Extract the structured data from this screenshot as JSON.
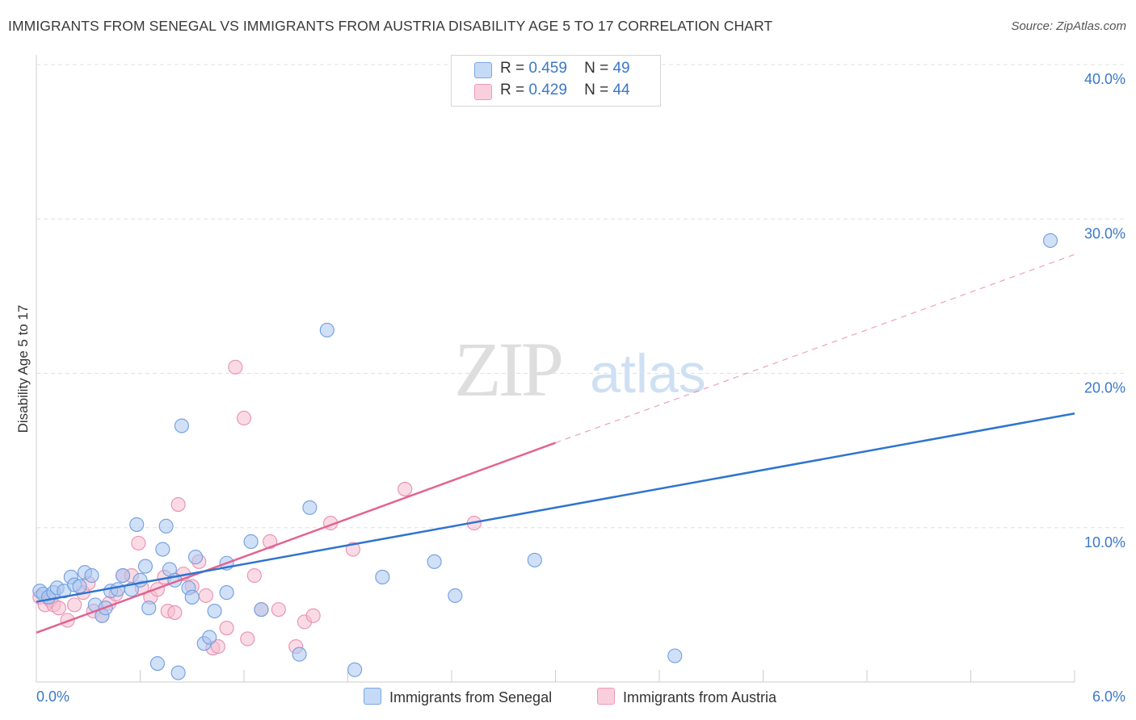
{
  "title": "IMMIGRANTS FROM SENEGAL VS IMMIGRANTS FROM AUSTRIA DISABILITY AGE 5 TO 17 CORRELATION CHART",
  "source": "Source: ZipAtlas.com",
  "watermark": {
    "zip": "ZIP",
    "atlas": "atlas"
  },
  "legend": {
    "senegal": {
      "r_label": "R =",
      "r_value": "0.459",
      "n_label": "N =",
      "n_value": "49"
    },
    "austria": {
      "r_label": "R =",
      "r_value": "0.429",
      "n_label": "N =",
      "n_value": "44"
    }
  },
  "colors": {
    "senegal_fill": "#a9c7f0",
    "senegal_stroke": "#6f9ee0",
    "senegal_line": "#2f74cf",
    "austria_fill": "#f6bdd0",
    "austria_stroke": "#e98fb0",
    "austria_line": "#e2638f",
    "grid": "#e0e0e0",
    "tick_label": "#3b78c9"
  },
  "chart_data": {
    "type": "scatter",
    "title": "IMMIGRANTS FROM SENEGAL VS IMMIGRANTS FROM AUSTRIA DISABILITY AGE 5 TO 17 CORRELATION CHART",
    "xlabel": "",
    "ylabel": "Disability Age 5 to 17",
    "xlim": [
      0,
      6.0
    ],
    "ylim": [
      0,
      40.0
    ],
    "x_tick_labels": [
      "0.0%",
      "6.0%"
    ],
    "y_ticks": [
      10,
      20,
      30,
      40
    ],
    "y_tick_labels": [
      "10.0%",
      "20.0%",
      "30.0%",
      "40.0%"
    ],
    "grid": true,
    "series": [
      {
        "name": "Immigrants from Senegal",
        "r": 0.459,
        "n": 49,
        "trend": {
          "x": [
            0,
            6.0
          ],
          "y": [
            5.2,
            17.4
          ],
          "dashed_extension": false
        },
        "points": [
          [
            0.02,
            5.9
          ],
          [
            0.04,
            5.7
          ],
          [
            0.07,
            5.5
          ],
          [
            0.1,
            5.8
          ],
          [
            0.12,
            6.1
          ],
          [
            0.16,
            5.9
          ],
          [
            0.2,
            6.8
          ],
          [
            0.22,
            6.3
          ],
          [
            0.25,
            6.2
          ],
          [
            0.28,
            7.1
          ],
          [
            0.32,
            6.9
          ],
          [
            0.34,
            5.0
          ],
          [
            0.38,
            4.3
          ],
          [
            0.4,
            4.8
          ],
          [
            0.43,
            5.9
          ],
          [
            0.47,
            6.0
          ],
          [
            0.5,
            6.9
          ],
          [
            0.55,
            6.0
          ],
          [
            0.58,
            10.2
          ],
          [
            0.6,
            6.6
          ],
          [
            0.63,
            7.5
          ],
          [
            0.65,
            4.8
          ],
          [
            0.7,
            1.2
          ],
          [
            0.73,
            8.6
          ],
          [
            0.75,
            10.1
          ],
          [
            0.77,
            7.3
          ],
          [
            0.8,
            6.6
          ],
          [
            0.82,
            0.6
          ],
          [
            0.84,
            16.6
          ],
          [
            0.88,
            6.1
          ],
          [
            0.9,
            5.5
          ],
          [
            0.92,
            8.1
          ],
          [
            0.97,
            2.5
          ],
          [
            1.0,
            2.9
          ],
          [
            1.03,
            4.6
          ],
          [
            1.1,
            7.7
          ],
          [
            1.1,
            5.8
          ],
          [
            1.24,
            9.1
          ],
          [
            1.3,
            4.7
          ],
          [
            1.52,
            1.8
          ],
          [
            1.58,
            11.3
          ],
          [
            1.68,
            22.8
          ],
          [
            1.84,
            0.8
          ],
          [
            2.0,
            6.8
          ],
          [
            2.3,
            7.8
          ],
          [
            2.42,
            5.6
          ],
          [
            2.88,
            7.9
          ],
          [
            3.69,
            1.7
          ],
          [
            5.86,
            28.6
          ]
        ]
      },
      {
        "name": "Immigrants from Austria",
        "r": 0.429,
        "n": 44,
        "trend": {
          "x": [
            0,
            3.0
          ],
          "y": [
            3.2,
            15.5
          ],
          "extension_x": [
            3.0,
            6.0
          ],
          "extension_y": [
            15.5,
            27.7
          ],
          "dashed_extension": true
        },
        "points": [
          [
            0.02,
            5.5
          ],
          [
            0.05,
            5.0
          ],
          [
            0.08,
            5.3
          ],
          [
            0.1,
            5.0
          ],
          [
            0.13,
            4.8
          ],
          [
            0.18,
            4.0
          ],
          [
            0.22,
            5.0
          ],
          [
            0.27,
            5.8
          ],
          [
            0.3,
            6.4
          ],
          [
            0.33,
            4.6
          ],
          [
            0.38,
            4.3
          ],
          [
            0.42,
            5.1
          ],
          [
            0.46,
            5.7
          ],
          [
            0.5,
            6.9
          ],
          [
            0.55,
            6.9
          ],
          [
            0.59,
            9.0
          ],
          [
            0.61,
            6.1
          ],
          [
            0.66,
            5.5
          ],
          [
            0.7,
            6.0
          ],
          [
            0.74,
            6.8
          ],
          [
            0.76,
            4.6
          ],
          [
            0.8,
            4.5
          ],
          [
            0.82,
            11.5
          ],
          [
            0.85,
            7.0
          ],
          [
            0.9,
            6.2
          ],
          [
            0.94,
            7.8
          ],
          [
            0.98,
            5.6
          ],
          [
            1.02,
            2.2
          ],
          [
            1.05,
            2.3
          ],
          [
            1.1,
            3.5
          ],
          [
            1.15,
            20.4
          ],
          [
            1.2,
            17.1
          ],
          [
            1.22,
            2.8
          ],
          [
            1.26,
            6.9
          ],
          [
            1.3,
            4.7
          ],
          [
            1.35,
            9.1
          ],
          [
            1.4,
            4.7
          ],
          [
            1.5,
            2.3
          ],
          [
            1.55,
            3.9
          ],
          [
            1.6,
            4.3
          ],
          [
            1.7,
            10.3
          ],
          [
            1.83,
            8.6
          ],
          [
            2.13,
            12.5
          ],
          [
            2.53,
            10.3
          ]
        ]
      }
    ]
  },
  "bottom_legend": {
    "senegal_label": "Immigrants from Senegal",
    "austria_label": "Immigrants from Austria"
  }
}
